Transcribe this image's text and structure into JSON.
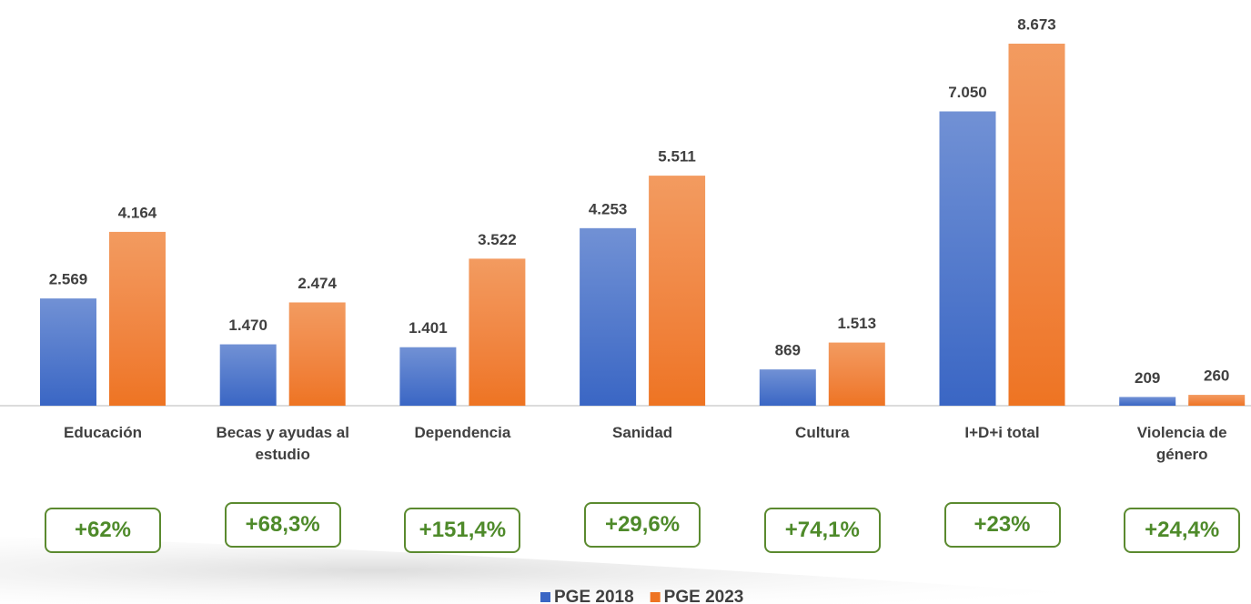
{
  "chart_data": {
    "type": "bar",
    "categories": [
      "Educación",
      "Becas y ayudas al estudio",
      "Dependencia",
      "Sanidad",
      "Cultura",
      "I+D+i total",
      "Violencia de género"
    ],
    "series": [
      {
        "name": "PGE 2018",
        "color": "#3a66c4",
        "values": [
          2569,
          1470,
          1401,
          4253,
          869,
          7050,
          209
        ],
        "value_labels": [
          "2.569",
          "1.470",
          "1.401",
          "4.253",
          "869",
          "7.050",
          "209"
        ]
      },
      {
        "name": "PGE 2023",
        "color": "#ee7422",
        "values": [
          4164,
          2474,
          3522,
          5511,
          1513,
          8673,
          260
        ],
        "value_labels": [
          "4.164",
          "2.474",
          "3.522",
          "5.511",
          "1.513",
          "8.673",
          "260"
        ]
      }
    ],
    "annotations": [
      "+62%",
      "+68,3%",
      "+151,4%",
      "+29,6%",
      "+74,1%",
      "+23%",
      "+24,4%"
    ],
    "legend": "bottom"
  }
}
